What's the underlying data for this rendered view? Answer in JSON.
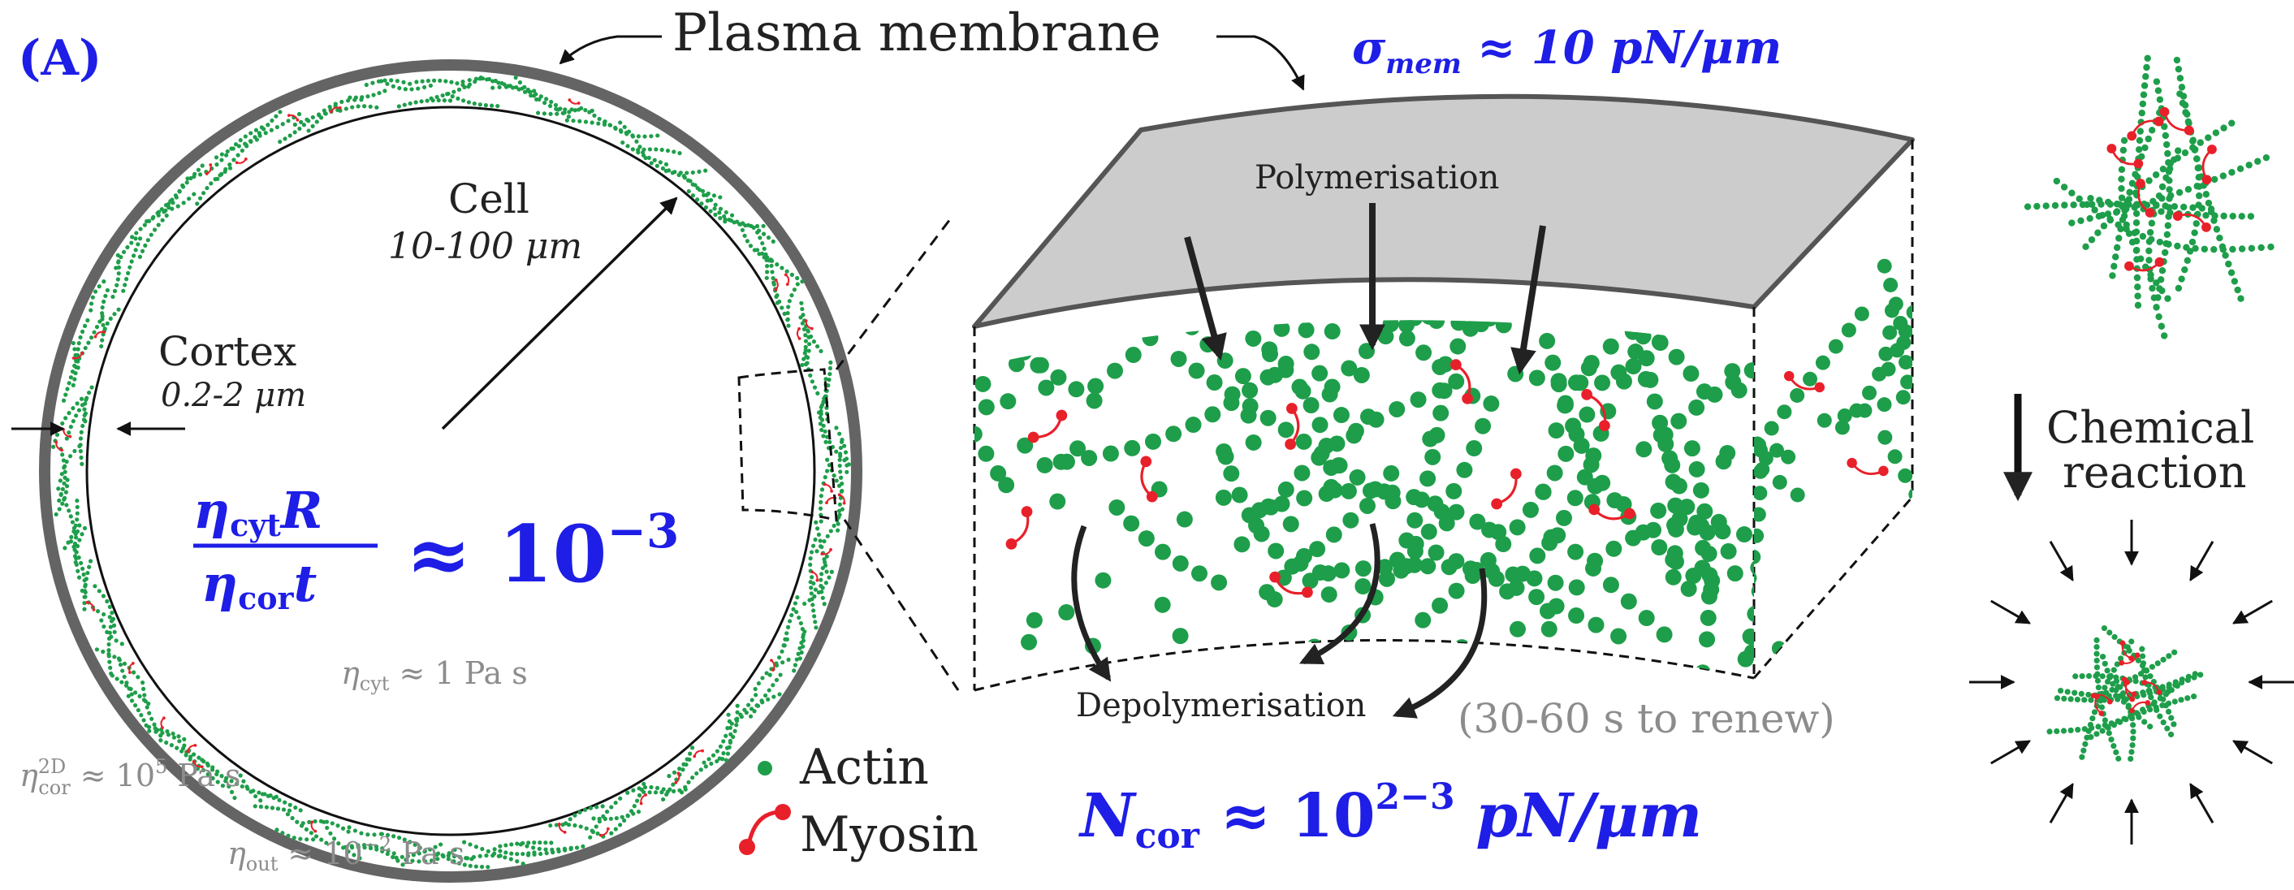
{
  "panel_label": "(A)",
  "labels": {
    "plasma_membrane": "Plasma membrane",
    "sigma_mem_symbol": "σ",
    "sigma_mem_sub": "mem",
    "sigma_mem_rest": " ≈ 10 pN/μm",
    "cell": "Cell",
    "cell_size": "10-100 μm",
    "cortex": "Cortex",
    "cortex_size": "0.2-2 μm",
    "ratio_num_eta": "η",
    "ratio_num_sub": "cyt",
    "ratio_num_rest": "R",
    "ratio_den_eta": "η",
    "ratio_den_sub": "cor",
    "ratio_den_rest": "t",
    "ratio_value": "≈ 10",
    "ratio_exp": "−3",
    "eta_cyt_sym": "η",
    "eta_cyt_sub": "cyt",
    "eta_cyt_rest": " ≈ 1 Pa s",
    "eta_cor_sym": "η",
    "eta_cor_sub": "cor",
    "eta_cor_sup": "2D",
    "eta_cor_rest": " ≈ 10",
    "eta_cor_exp": "5",
    "eta_cor_unit": " Pa s",
    "eta_out_sym": "η",
    "eta_out_sub": "out",
    "eta_out_rest": " ≈ 10",
    "eta_out_exp": "−2",
    "eta_out_unit": " Pa s",
    "polymerisation": "Polymerisation",
    "depolymerisation": "Depolymerisation",
    "renew": "(30-60 s to renew)",
    "actin": "Actin",
    "myosin": "Myosin",
    "n_cor_sym": "N",
    "n_cor_sub": "cor",
    "n_cor_rest": " ≈ 10",
    "n_cor_exp": "2−3",
    "n_cor_unit": " pN/μm",
    "chemical": "Chemical",
    "reaction": "reaction"
  },
  "colors": {
    "actin": "#1e9e4a",
    "myosin": "#e8202a",
    "membrane_fill": "#cccccc",
    "membrane_stroke": "#555555",
    "accent_blue": "#1e1ee6",
    "grey_text": "#8c8c8c"
  }
}
